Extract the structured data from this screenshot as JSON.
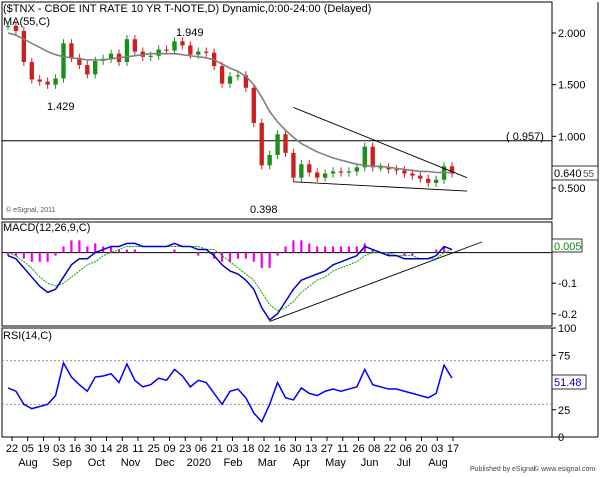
{
  "chart_data": [
    {
      "type": "line",
      "panel": "price",
      "title": "($TNX - CBOE INT RATE 10 YR T-NOTE,D) Dynamic,0:00-24:00 (Delayed)",
      "watermark": "© eSignal, 2011",
      "ylim": [
        0.2,
        2.3
      ],
      "y_ticks": [
        "2.000",
        "1.500",
        "1.000",
        "0.500"
      ],
      "y_tick_values": [
        2.0,
        1.5,
        1.0,
        0.5
      ],
      "series": [
        {
          "name": "$TNX",
          "kind": "candles",
          "x": [
            "2019-07-22",
            "2019-07-29",
            "2019-08-05",
            "2019-08-12",
            "2019-08-19",
            "2019-08-26",
            "2019-09-03",
            "2019-09-09",
            "2019-09-16",
            "2019-09-23",
            "2019-09-30",
            "2019-10-07",
            "2019-10-14",
            "2019-10-21",
            "2019-10-28",
            "2019-11-04",
            "2019-11-11",
            "2019-11-18",
            "2019-11-25",
            "2019-12-02",
            "2019-12-09",
            "2019-12-16",
            "2019-12-23",
            "2019-12-30",
            "2020-01-06",
            "2020-01-13",
            "2020-01-21",
            "2020-01-27",
            "2020-02-03",
            "2020-02-10",
            "2020-02-18",
            "2020-02-24",
            "2020-03-02",
            "2020-03-09",
            "2020-03-16",
            "2020-03-23",
            "2020-03-30",
            "2020-04-06",
            "2020-04-13",
            "2020-04-20",
            "2020-04-27",
            "2020-05-04",
            "2020-05-11",
            "2020-05-18",
            "2020-05-26",
            "2020-06-01",
            "2020-06-08",
            "2020-06-15",
            "2020-06-22",
            "2020-06-29",
            "2020-07-06",
            "2020-07-13",
            "2020-07-20",
            "2020-07-27",
            "2020-08-03",
            "2020-08-10",
            "2020-08-17"
          ],
          "values": [
            2.07,
            2.02,
            1.72,
            1.55,
            1.53,
            1.5,
            1.56,
            1.9,
            1.76,
            1.69,
            1.6,
            1.73,
            1.75,
            1.8,
            1.72,
            1.94,
            1.82,
            1.77,
            1.78,
            1.84,
            1.83,
            1.92,
            1.88,
            1.79,
            1.82,
            1.81,
            1.68,
            1.51,
            1.58,
            1.59,
            1.47,
            1.13,
            0.72,
            0.82,
            1.02,
            0.84,
            0.6,
            0.73,
            0.65,
            0.6,
            0.64,
            0.66,
            0.65,
            0.66,
            0.7,
            0.9,
            0.7,
            0.7,
            0.68,
            0.67,
            0.64,
            0.62,
            0.59,
            0.55,
            0.58,
            0.71,
            0.64
          ]
        },
        {
          "name": "MA(55,C)",
          "kind": "line",
          "color": "#808080",
          "values": [
            2.0,
            1.98,
            1.94,
            1.9,
            1.86,
            1.82,
            1.79,
            1.77,
            1.76,
            1.75,
            1.74,
            1.74,
            1.74,
            1.75,
            1.76,
            1.77,
            1.78,
            1.79,
            1.8,
            1.8,
            1.8,
            1.8,
            1.79,
            1.78,
            1.77,
            1.76,
            1.74,
            1.7,
            1.66,
            1.63,
            1.58,
            1.5,
            1.38,
            1.24,
            1.14,
            1.06,
            0.99,
            0.93,
            0.89,
            0.85,
            0.82,
            0.79,
            0.77,
            0.75,
            0.73,
            0.72,
            0.71,
            0.71,
            0.7,
            0.69,
            0.68,
            0.67,
            0.66,
            0.66,
            0.65,
            0.65,
            0.65
          ]
        }
      ],
      "annotations": [
        "1.949",
        "1.429",
        "0.398",
        "( 0.957)"
      ],
      "last_values": [
        "0.640",
        "55"
      ],
      "level_line": 0.957
    },
    {
      "type": "line",
      "panel": "macd",
      "ylim": [
        -0.24,
        0.1
      ],
      "y_ticks": [
        "-0.1",
        "-0.2"
      ],
      "y_tick_values": [
        -0.1,
        -0.2
      ],
      "series": [
        {
          "name": "MACD(12,26,9,C)",
          "kind": "line",
          "color": "#0000cc",
          "values": [
            -0.01,
            -0.02,
            -0.05,
            -0.08,
            -0.11,
            -0.13,
            -0.12,
            -0.08,
            -0.04,
            -0.02,
            -0.02,
            0.0,
            0.01,
            0.02,
            0.02,
            0.03,
            0.03,
            0.02,
            0.02,
            0.02,
            0.02,
            0.03,
            0.02,
            0.02,
            0.01,
            0.01,
            -0.01,
            -0.04,
            -0.06,
            -0.07,
            -0.09,
            -0.12,
            -0.18,
            -0.22,
            -0.2,
            -0.16,
            -0.12,
            -0.09,
            -0.08,
            -0.07,
            -0.06,
            -0.04,
            -0.03,
            -0.02,
            -0.01,
            0.02,
            0.01,
            0.0,
            -0.01,
            -0.01,
            -0.02,
            -0.02,
            -0.02,
            -0.02,
            -0.01,
            0.02,
            0.01
          ]
        },
        {
          "name": "Signal",
          "kind": "line",
          "color": "#00aa00",
          "values": [
            0.0,
            -0.01,
            -0.03,
            -0.05,
            -0.08,
            -0.1,
            -0.11,
            -0.1,
            -0.08,
            -0.06,
            -0.04,
            -0.03,
            -0.01,
            0.0,
            0.01,
            0.02,
            0.02,
            0.02,
            0.02,
            0.02,
            0.02,
            0.02,
            0.02,
            0.02,
            0.02,
            0.01,
            0.01,
            -0.01,
            -0.03,
            -0.05,
            -0.07,
            -0.09,
            -0.13,
            -0.17,
            -0.19,
            -0.18,
            -0.16,
            -0.13,
            -0.11,
            -0.09,
            -0.08,
            -0.06,
            -0.05,
            -0.04,
            -0.03,
            -0.01,
            0.0,
            0.0,
            0.0,
            -0.01,
            -0.01,
            -0.01,
            -0.02,
            -0.02,
            -0.02,
            0.0,
            0.01
          ]
        },
        {
          "name": "Histogram",
          "kind": "bar",
          "color": "#ee00ee",
          "values": [
            -0.01,
            -0.01,
            -0.02,
            -0.03,
            -0.03,
            -0.03,
            -0.01,
            0.02,
            0.04,
            0.04,
            0.02,
            0.03,
            0.02,
            0.02,
            0.01,
            0.01,
            0.01,
            0.0,
            0.0,
            0.0,
            0.0,
            0.01,
            0.0,
            0.0,
            -0.01,
            0.0,
            -0.02,
            -0.03,
            -0.03,
            -0.02,
            -0.02,
            -0.03,
            -0.05,
            -0.05,
            -0.01,
            0.02,
            0.04,
            0.04,
            0.03,
            0.02,
            0.02,
            0.02,
            0.02,
            0.02,
            0.02,
            0.03,
            0.01,
            0.0,
            -0.01,
            0.0,
            -0.01,
            -0.01,
            0.0,
            0.0,
            0.01,
            0.02,
            0.0
          ]
        }
      ],
      "last_value": "0.005"
    },
    {
      "type": "line",
      "panel": "rsi",
      "ylim": [
        0,
        100
      ],
      "y_ticks": [
        "100",
        "75",
        "50",
        "25",
        "0"
      ],
      "y_tick_values": [
        100,
        75,
        50,
        25,
        0
      ],
      "levels": [
        70,
        30
      ],
      "series": [
        {
          "name": "RSI(14,C)",
          "kind": "line",
          "color": "#0000ff",
          "values": [
            45,
            42,
            30,
            26,
            28,
            30,
            38,
            68,
            55,
            48,
            42,
            55,
            56,
            58,
            50,
            67,
            52,
            46,
            48,
            54,
            52,
            62,
            56,
            46,
            52,
            50,
            40,
            30,
            42,
            44,
            36,
            22,
            14,
            30,
            50,
            36,
            34,
            45,
            40,
            38,
            42,
            44,
            42,
            44,
            46,
            62,
            48,
            46,
            44,
            44,
            42,
            40,
            38,
            36,
            40,
            66,
            54
          ]
        }
      ],
      "last_value": "51.48"
    }
  ],
  "x_axis": {
    "day_labels": [
      "22",
      "05",
      "19",
      "03",
      "16",
      "30",
      "14",
      "28",
      "11",
      "25",
      "09",
      "23",
      "06",
      "21",
      "03",
      "18",
      "02",
      "16",
      "30",
      "13",
      "27",
      "11",
      "26",
      "08",
      "22",
      "06",
      "20",
      "03",
      "17"
    ],
    "month_labels": [
      "Aug",
      "Sep",
      "Oct",
      "Nov",
      "Dec",
      "2020",
      "Feb",
      "Mar",
      "Apr",
      "May",
      "Jun",
      "Jul",
      "Aug"
    ]
  },
  "footer": {
    "published": "Published by eSignal",
    "copyright": "© www.esignal.com"
  }
}
